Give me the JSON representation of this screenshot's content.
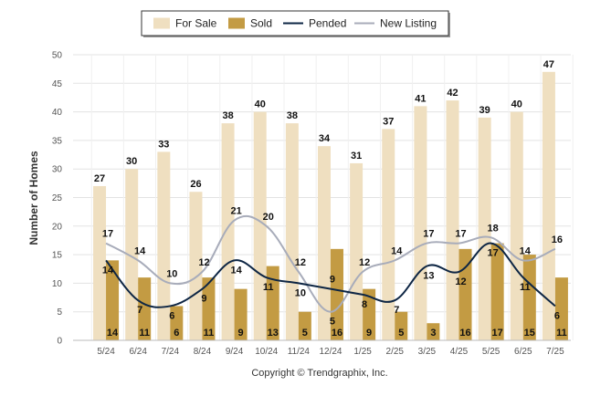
{
  "chart_data": {
    "type": "bar",
    "categories": [
      "5/24",
      "6/24",
      "7/24",
      "8/24",
      "9/24",
      "10/24",
      "11/24",
      "12/24",
      "1/25",
      "2/25",
      "3/25",
      "4/25",
      "5/25",
      "6/25",
      "7/25"
    ],
    "series": [
      {
        "name": "For Sale",
        "kind": "bar",
        "color": "#efdfc0",
        "values": [
          27,
          30,
          33,
          26,
          38,
          40,
          38,
          34,
          31,
          37,
          41,
          42,
          39,
          40,
          47
        ]
      },
      {
        "name": "Sold",
        "kind": "bar",
        "color": "#c39b43",
        "values": [
          14,
          11,
          6,
          11,
          9,
          13,
          5,
          16,
          9,
          5,
          3,
          16,
          17,
          15,
          11
        ]
      },
      {
        "name": "Pended",
        "kind": "line",
        "color": "#0e2644",
        "values": [
          14,
          7,
          6,
          9,
          14,
          11,
          10,
          9,
          8,
          7,
          13,
          12,
          17,
          11,
          6
        ]
      },
      {
        "name": "New Listing",
        "kind": "line",
        "color": "#a8acba",
        "values": [
          17,
          14,
          10,
          12,
          21,
          20,
          12,
          5,
          12,
          14,
          17,
          17,
          18,
          14,
          16
        ]
      }
    ],
    "ylabel": "Number of Homes",
    "xlabel": "",
    "ylim": [
      0,
      50
    ],
    "yticks": [
      0,
      5,
      10,
      15,
      20,
      25,
      30,
      35,
      40,
      45,
      50
    ],
    "grid": true,
    "legend_position": "top-center",
    "copyright": "Copyright © Trendgraphix, Inc."
  }
}
